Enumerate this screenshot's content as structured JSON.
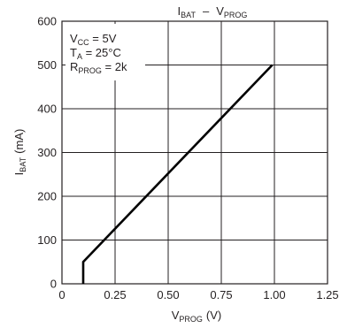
{
  "chart_data": {
    "type": "line",
    "title": {
      "main": "I",
      "main_sub": "BAT",
      "sep": "–",
      "second": "V",
      "second_sub": "PROG"
    },
    "xlabel": {
      "main": "V",
      "sub": "PROG",
      "unit": "(V)"
    },
    "ylabel": {
      "main": "I",
      "sub": "BAT",
      "unit": "(mA)"
    },
    "xlim": [
      0,
      1.25
    ],
    "ylim": [
      0,
      600
    ],
    "xticks": [
      0,
      0.25,
      0.5,
      0.75,
      1.0,
      1.25
    ],
    "xtick_labels": [
      "0",
      "0.25",
      "0.50",
      "0.75",
      "1.00",
      "1.25"
    ],
    "yticks": [
      0,
      100,
      200,
      300,
      400,
      500,
      600
    ],
    "ytick_labels": [
      "0",
      "100",
      "200",
      "300",
      "400",
      "500",
      "600"
    ],
    "grid": true,
    "annotations": [
      {
        "main": "V",
        "sub": "CC",
        "value": " = 5V"
      },
      {
        "main": "T",
        "sub": "A",
        "value": " = 25°C"
      },
      {
        "main": "R",
        "sub": "PROG",
        "value": " = 2k"
      }
    ],
    "series": [
      {
        "x": [
          0.1,
          0.1,
          0.99
        ],
        "y": [
          0,
          50,
          500
        ],
        "color": "#000000"
      }
    ]
  }
}
